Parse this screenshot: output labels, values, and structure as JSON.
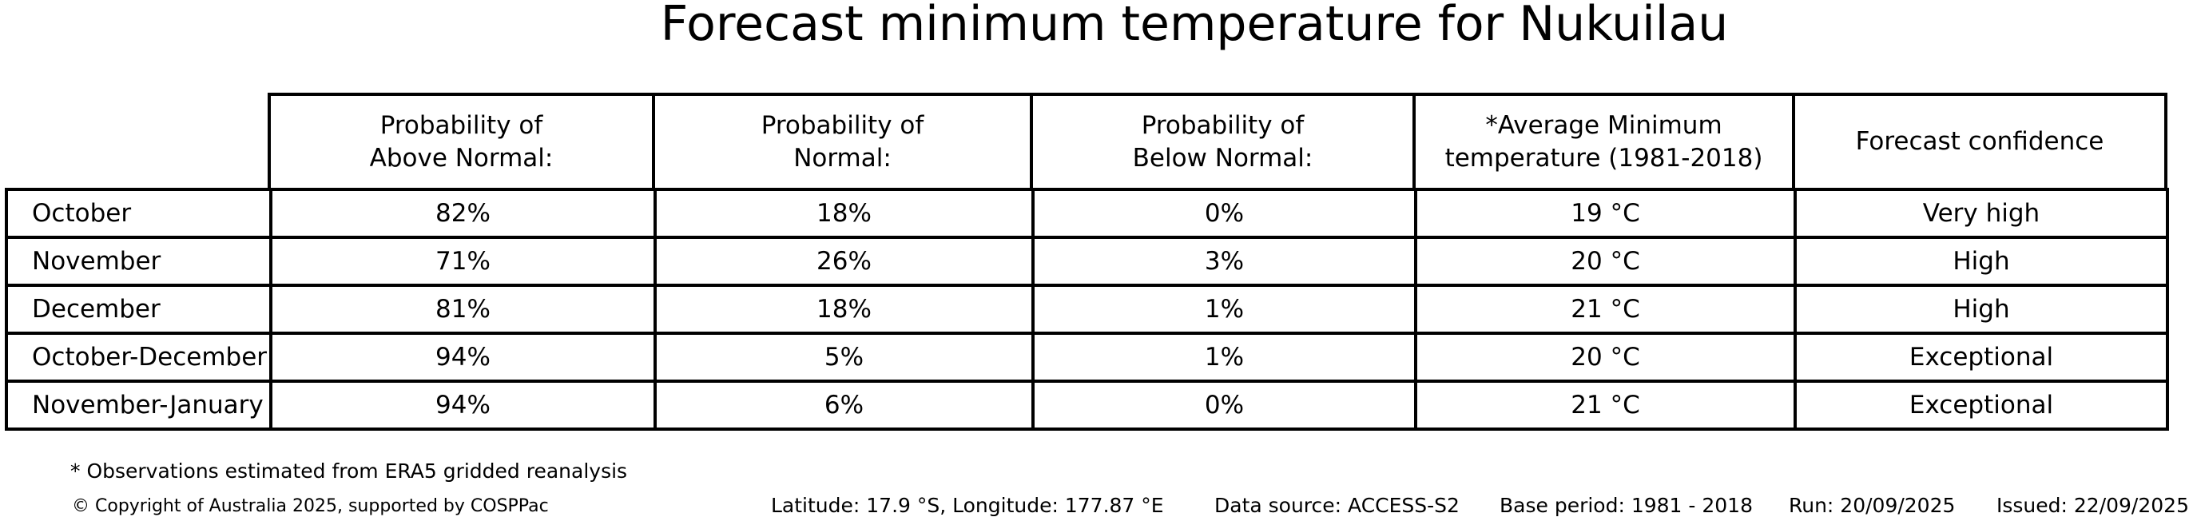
{
  "title": "Forecast minimum temperature for Nukuilau",
  "colors": {
    "background": "#ffffff",
    "border": "#000000",
    "text": "#000000"
  },
  "chart_data": {
    "type": "table",
    "title": "Forecast minimum temperature for Nukuilau",
    "columns": [
      "Probability of\nAbove Normal:",
      "Probability of\nNormal:",
      "Probability of\nBelow Normal:",
      "*Average Minimum\ntemperature (1981-2018)",
      "Forecast confidence"
    ],
    "row_header": [
      "October",
      "November",
      "December",
      "October-December",
      "November-January"
    ],
    "rows": [
      [
        "82%",
        "18%",
        "0%",
        "19 °C",
        "Very high"
      ],
      [
        "71%",
        "26%",
        "3%",
        "20 °C",
        "High"
      ],
      [
        "81%",
        "18%",
        "1%",
        "21 °C",
        "High"
      ],
      [
        "94%",
        "5%",
        "1%",
        "20 °C",
        "Exceptional"
      ],
      [
        "94%",
        "6%",
        "0%",
        "21 °C",
        "Exceptional"
      ]
    ]
  },
  "footnote": "* Observations estimated from ERA5 gridded reanalysis",
  "footer": {
    "copyright": "© Copyright of Australia 2025, supported by COSPPac",
    "location": "Latitude: 17.9 °S, Longitude: 177.87 °E",
    "data_source": "Data source: ACCESS-S2",
    "base_period": "Base period: 1981 - 2018",
    "run": "Run: 20/09/2025",
    "issued": "Issued: 22/09/2025"
  }
}
